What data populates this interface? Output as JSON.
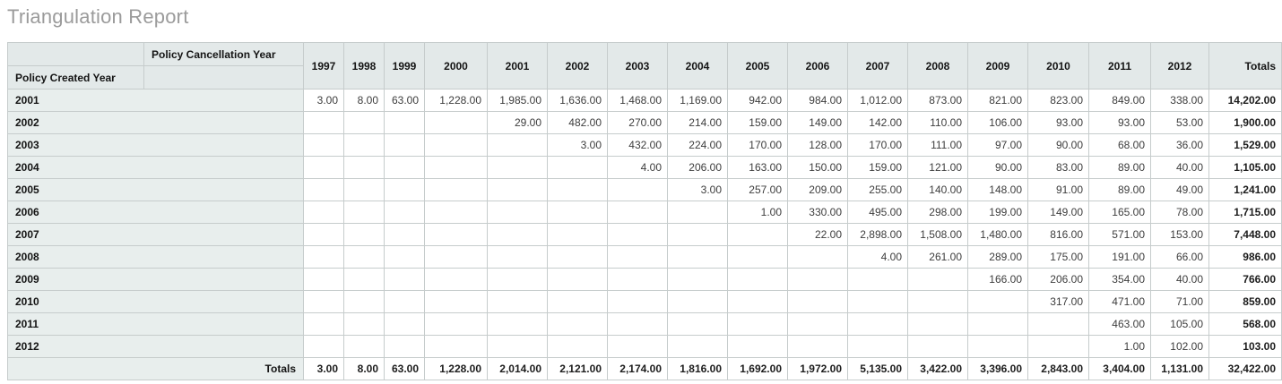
{
  "page": {
    "title": "Triangulation Report"
  },
  "table": {
    "col_axis_label": "Policy Cancellation Year",
    "row_axis_label": "Policy Created Year",
    "totals_col_label": "Totals",
    "totals_row_label": "Totals",
    "years": [
      "1997",
      "1998",
      "1999",
      "2000",
      "2001",
      "2002",
      "2003",
      "2004",
      "2005",
      "2006",
      "2007",
      "2008",
      "2009",
      "2010",
      "2011",
      "2012"
    ],
    "rows": [
      {
        "label": "2001",
        "values": [
          "3.00",
          "8.00",
          "63.00",
          "1,228.00",
          "1,985.00",
          "1,636.00",
          "1,468.00",
          "1,169.00",
          "942.00",
          "984.00",
          "1,012.00",
          "873.00",
          "821.00",
          "823.00",
          "849.00",
          "338.00"
        ],
        "total": "14,202.00"
      },
      {
        "label": "2002",
        "values": [
          "",
          "",
          "",
          "",
          "29.00",
          "482.00",
          "270.00",
          "214.00",
          "159.00",
          "149.00",
          "142.00",
          "110.00",
          "106.00",
          "93.00",
          "93.00",
          "53.00"
        ],
        "total": "1,900.00"
      },
      {
        "label": "2003",
        "values": [
          "",
          "",
          "",
          "",
          "",
          "3.00",
          "432.00",
          "224.00",
          "170.00",
          "128.00",
          "170.00",
          "111.00",
          "97.00",
          "90.00",
          "68.00",
          "36.00"
        ],
        "total": "1,529.00"
      },
      {
        "label": "2004",
        "values": [
          "",
          "",
          "",
          "",
          "",
          "",
          "4.00",
          "206.00",
          "163.00",
          "150.00",
          "159.00",
          "121.00",
          "90.00",
          "83.00",
          "89.00",
          "40.00"
        ],
        "total": "1,105.00"
      },
      {
        "label": "2005",
        "values": [
          "",
          "",
          "",
          "",
          "",
          "",
          "",
          "3.00",
          "257.00",
          "209.00",
          "255.00",
          "140.00",
          "148.00",
          "91.00",
          "89.00",
          "49.00"
        ],
        "total": "1,241.00"
      },
      {
        "label": "2006",
        "values": [
          "",
          "",
          "",
          "",
          "",
          "",
          "",
          "",
          "1.00",
          "330.00",
          "495.00",
          "298.00",
          "199.00",
          "149.00",
          "165.00",
          "78.00"
        ],
        "total": "1,715.00"
      },
      {
        "label": "2007",
        "values": [
          "",
          "",
          "",
          "",
          "",
          "",
          "",
          "",
          "",
          "22.00",
          "2,898.00",
          "1,508.00",
          "1,480.00",
          "816.00",
          "571.00",
          "153.00"
        ],
        "total": "7,448.00"
      },
      {
        "label": "2008",
        "values": [
          "",
          "",
          "",
          "",
          "",
          "",
          "",
          "",
          "",
          "",
          "4.00",
          "261.00",
          "289.00",
          "175.00",
          "191.00",
          "66.00"
        ],
        "total": "986.00"
      },
      {
        "label": "2009",
        "values": [
          "",
          "",
          "",
          "",
          "",
          "",
          "",
          "",
          "",
          "",
          "",
          "",
          "166.00",
          "206.00",
          "354.00",
          "40.00"
        ],
        "total": "766.00"
      },
      {
        "label": "2010",
        "values": [
          "",
          "",
          "",
          "",
          "",
          "",
          "",
          "",
          "",
          "",
          "",
          "",
          "",
          "317.00",
          "471.00",
          "71.00"
        ],
        "total": "859.00"
      },
      {
        "label": "2011",
        "values": [
          "",
          "",
          "",
          "",
          "",
          "",
          "",
          "",
          "",
          "",
          "",
          "",
          "",
          "",
          "463.00",
          "105.00"
        ],
        "total": "568.00"
      },
      {
        "label": "2012",
        "values": [
          "",
          "",
          "",
          "",
          "",
          "",
          "",
          "",
          "",
          "",
          "",
          "",
          "",
          "",
          "1.00",
          "102.00"
        ],
        "total": "103.00"
      }
    ],
    "totals_row": {
      "values": [
        "3.00",
        "8.00",
        "63.00",
        "1,228.00",
        "2,014.00",
        "2,121.00",
        "2,174.00",
        "1,816.00",
        "1,692.00",
        "1,972.00",
        "5,135.00",
        "3,422.00",
        "3,396.00",
        "2,843.00",
        "3,404.00",
        "1,131.00"
      ],
      "grand_total": "32,422.00"
    }
  },
  "colors": {
    "title_text": "#9b9b9b",
    "header_bg": "#e3e9e9",
    "row_label_bg": "#e8eeed",
    "cell_border": "#c6cccc",
    "table_outline": "#a8aeae",
    "data_text": "#3d3d3d"
  }
}
